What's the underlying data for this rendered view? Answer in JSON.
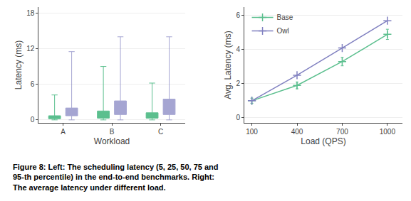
{
  "chart_data": [
    {
      "type": "box",
      "categories": [
        "A",
        "B",
        "C"
      ],
      "series": [
        {
          "color": "#5bbf8e",
          "stats": [
            {
              "whislo": 0.0,
              "q1": 0.2,
              "med": 0.4,
              "q3": 0.7,
              "whishi": 4.2
            },
            {
              "whislo": 0.0,
              "q1": 0.3,
              "med": 0.6,
              "q3": 1.5,
              "whishi": 9.0
            },
            {
              "whislo": 0.0,
              "q1": 0.3,
              "med": 0.7,
              "q3": 1.2,
              "whishi": 6.2
            }
          ]
        },
        {
          "color": "#8080c0",
          "stats": [
            {
              "whislo": 0.0,
              "q1": 0.7,
              "med": 1.2,
              "q3": 2.0,
              "whishi": 11.5
            },
            {
              "whislo": 0.0,
              "q1": 0.9,
              "med": 1.8,
              "q3": 3.2,
              "whishi": 14.0
            },
            {
              "whislo": 0.0,
              "q1": 0.9,
              "med": 1.8,
              "q3": 3.5,
              "whishi": 14.0
            }
          ]
        }
      ],
      "xlabel": "Workload",
      "ylabel": "Latency (ms)",
      "ylim": [
        -0.5,
        19
      ],
      "yticks": [
        0,
        6,
        12,
        18
      ],
      "grid": "y"
    },
    {
      "type": "line",
      "x": [
        100,
        400,
        700,
        1000
      ],
      "series": [
        {
          "name": "Base",
          "color": "#5bbf8e",
          "values": [
            1.0,
            1.9,
            3.3,
            4.9
          ],
          "error": [
            0.15,
            0.2,
            0.25,
            0.3
          ]
        },
        {
          "name": "Owl",
          "color": "#8080c0",
          "values": [
            1.0,
            2.5,
            4.1,
            5.7
          ]
        }
      ],
      "xlabel": "Load (QPS)",
      "ylabel": "Avg. Latency (ms)",
      "xlim": [
        50,
        1100
      ],
      "xticks": [
        100,
        400,
        700,
        1000
      ],
      "ylim": [
        -0.3,
        6.5
      ],
      "yticks": [
        0,
        2,
        4,
        6
      ],
      "grid": "y",
      "legend": "upper left",
      "marker": "plus"
    }
  ],
  "caption": [
    "Figure 8: Left: The scheduling latency (5, 25, 50, 75 and",
    "95-th percentile) in the end-to-end benchmarks. Right:",
    "The average latency under different load."
  ]
}
